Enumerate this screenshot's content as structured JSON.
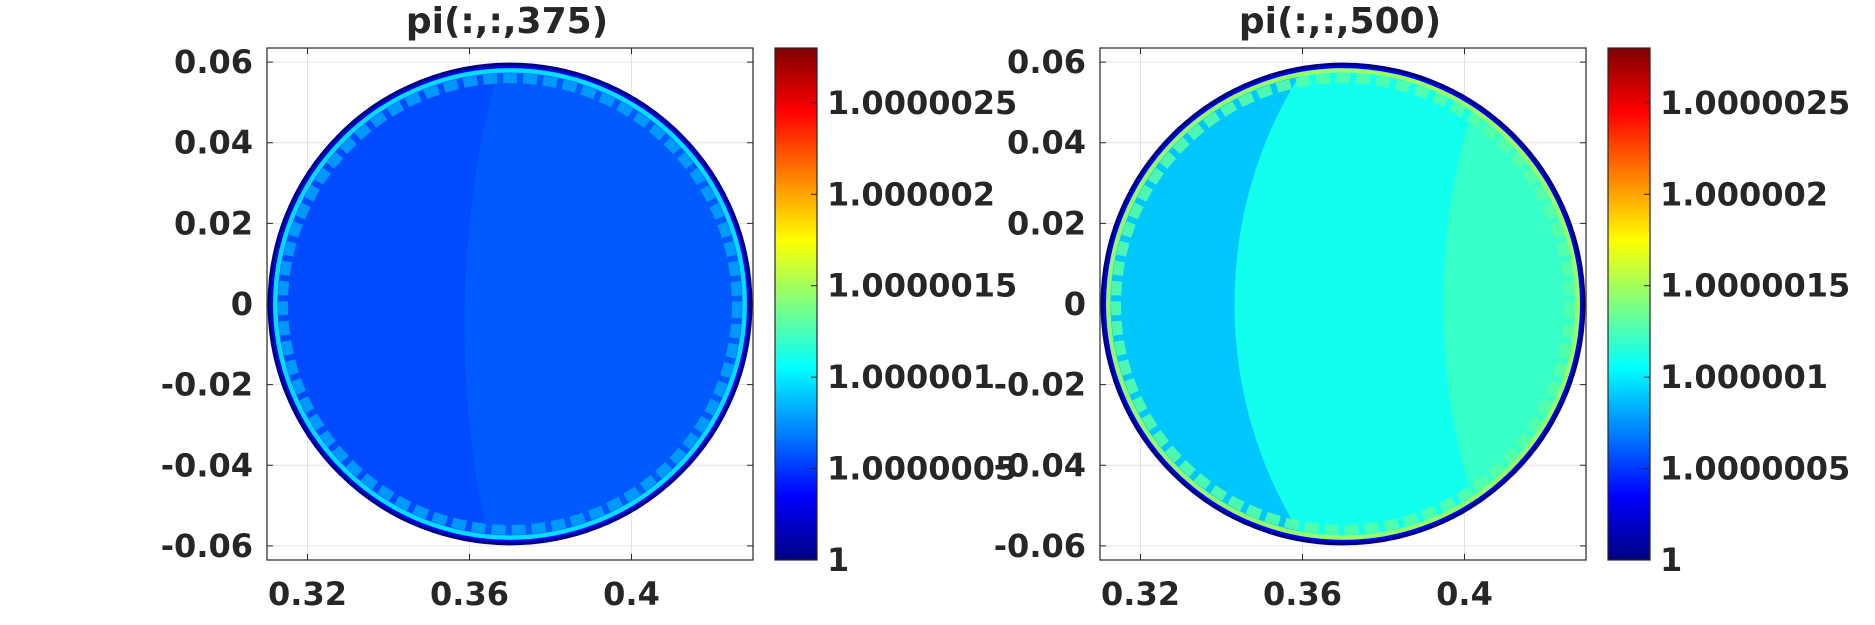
{
  "chart_data": [
    {
      "type": "heatmap",
      "title": "pi(:,:,375)",
      "xlabel": "",
      "ylabel": "",
      "x_ticks": [
        "0.32",
        "0.36",
        "0.4"
      ],
      "x_tick_values": [
        0.32,
        0.36,
        0.4
      ],
      "y_ticks": [
        "0.06",
        "0.04",
        "0.02",
        "0",
        "-0.02",
        "-0.04",
        "-0.06"
      ],
      "y_tick_values": [
        0.06,
        0.04,
        0.02,
        0,
        -0.02,
        -0.04,
        -0.06
      ],
      "xlim": [
        0.31,
        0.43
      ],
      "ylim": [
        -0.0635,
        0.0635
      ],
      "domain_shape": "disk",
      "disk_center": [
        0.37,
        0.0
      ],
      "disk_radius": 0.0595,
      "field_values": {
        "interior": 1.0000006,
        "rim_band": 1.0000008,
        "boundary": 1.0
      },
      "colorbar": {
        "colormap": "jet",
        "limits": [
          1.0,
          1.0000028
        ],
        "ticks": [
          "1",
          "1.0000005",
          "1.000001",
          "1.0000015",
          "1.000002",
          "1.0000025"
        ],
        "tick_values": [
          1.0,
          1.0000005,
          1.000001,
          1.0000015,
          1.000002,
          1.0000025
        ]
      },
      "grid": true
    },
    {
      "type": "heatmap",
      "title": "pi(:,:,500)",
      "xlabel": "",
      "ylabel": "",
      "x_ticks": [
        "0.32",
        "0.36",
        "0.4"
      ],
      "x_tick_values": [
        0.32,
        0.36,
        0.4
      ],
      "y_ticks": [
        "0.06",
        "0.04",
        "0.02",
        "0",
        "-0.02",
        "-0.04",
        "-0.06"
      ],
      "y_tick_values": [
        0.06,
        0.04,
        0.02,
        0,
        -0.02,
        -0.04,
        -0.06
      ],
      "xlim": [
        0.31,
        0.43
      ],
      "ylim": [
        -0.0635,
        0.0635
      ],
      "domain_shape": "disk",
      "disk_center": [
        0.37,
        0.0
      ],
      "disk_radius": 0.0595,
      "field_values": {
        "left_region": 1.0000009,
        "center_region": 1.0000011,
        "right_region": 1.0000012,
        "rim_band": 1.0000013,
        "boundary": 1.0
      },
      "colorbar": {
        "colormap": "jet",
        "limits": [
          1.0,
          1.0000028
        ],
        "ticks": [
          "1",
          "1.0000005",
          "1.000001",
          "1.0000015",
          "1.000002",
          "1.0000025"
        ],
        "tick_values": [
          1.0,
          1.0000005,
          1.000001,
          1.0000015,
          1.000002,
          1.0000025
        ]
      },
      "grid": true
    }
  ]
}
